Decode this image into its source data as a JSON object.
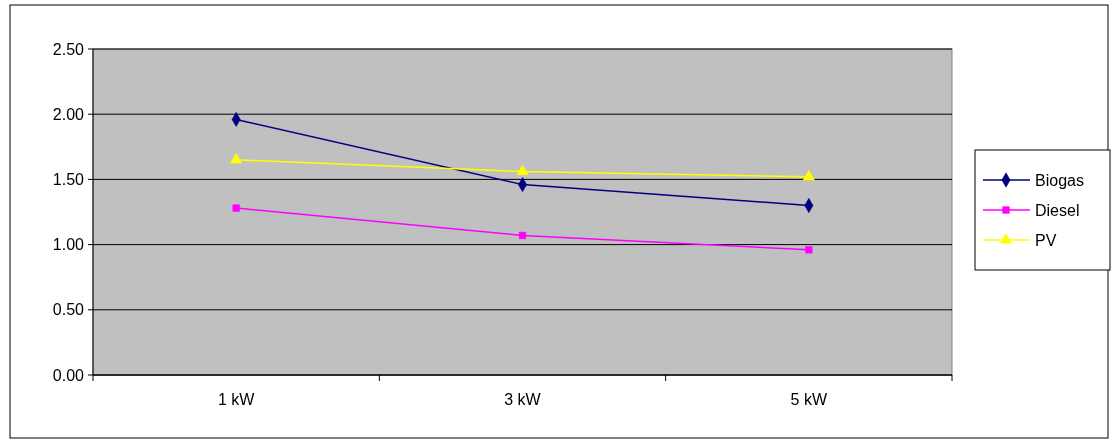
{
  "chart_data": {
    "type": "line",
    "categories": [
      "1 kW",
      "3 kW",
      "5 kW"
    ],
    "series": [
      {
        "name": "Biogas",
        "color": "#000080",
        "marker": "diamond",
        "values": [
          1.96,
          1.46,
          1.3
        ]
      },
      {
        "name": "Diesel",
        "color": "#ff00ff",
        "marker": "square",
        "values": [
          1.28,
          1.07,
          0.96
        ]
      },
      {
        "name": "PV",
        "color": "#ffff00",
        "marker": "triangle",
        "values": [
          1.65,
          1.56,
          1.52
        ]
      }
    ],
    "ylim": [
      0,
      2.5
    ],
    "yticks": [
      {
        "value": 0,
        "label": "0.00"
      },
      {
        "value": 0.5,
        "label": "0.50"
      },
      {
        "value": 1,
        "label": "1.00"
      },
      {
        "value": 1.5,
        "label": "1.50"
      },
      {
        "value": 2,
        "label": "2.00"
      },
      {
        "value": 2.5,
        "label": "2.50"
      }
    ],
    "grid": "y",
    "legend": "right",
    "line_style": "solid"
  }
}
